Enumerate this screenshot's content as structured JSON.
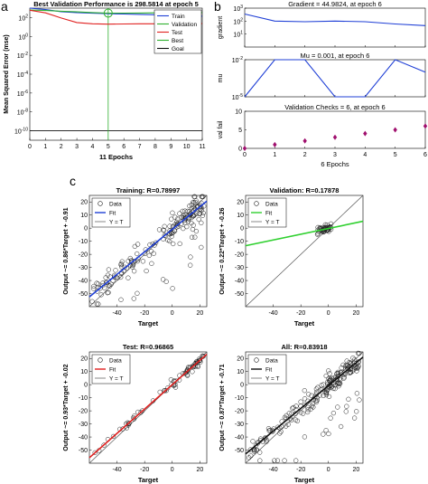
{
  "panel_labels": {
    "a": "a",
    "b": "b",
    "c": "c"
  },
  "chart_data": [
    {
      "id": "perf",
      "type": "line",
      "title": "Best Validation Performance is 298.5814 at epoch 5",
      "xlabel": "11 Epochs",
      "ylabel": "Mean Squared Error  (mse)",
      "yscale": "log",
      "xlim": [
        0,
        11
      ],
      "ylim_exp": [
        -11,
        3
      ],
      "x_ticks": [
        "0",
        "1",
        "2",
        "3",
        "4",
        "5",
        "6",
        "7",
        "8",
        "9",
        "10",
        "11"
      ],
      "y_ticks": [
        {
          "exp": 2,
          "label": "10",
          "sup": "2"
        },
        {
          "exp": 0,
          "label": "10",
          "sup": "0"
        },
        {
          "exp": -2,
          "label": "10",
          "sup": "-2"
        },
        {
          "exp": -4,
          "label": "10",
          "sup": "-4"
        },
        {
          "exp": -6,
          "label": "10",
          "sup": "-6"
        },
        {
          "exp": -8,
          "label": "10",
          "sup": "-8"
        },
        {
          "exp": -10,
          "label": "10",
          "sup": "-10"
        }
      ],
      "series": [
        {
          "name": "Train",
          "color": "#1f3fd6",
          "x": [
            0,
            1,
            2,
            3,
            4,
            5,
            6,
            7,
            8,
            9,
            10,
            11
          ],
          "y": [
            1000,
            700,
            420,
            330,
            290,
            260,
            240,
            220,
            200,
            180,
            160,
            140
          ]
        },
        {
          "name": "Validation",
          "color": "#2fb02f",
          "x": [
            0,
            1,
            2,
            3,
            4,
            5,
            6,
            7,
            8,
            9,
            10,
            11
          ],
          "y": [
            650,
            560,
            470,
            400,
            340,
            298.58,
            300,
            305,
            320,
            330,
            340,
            350
          ]
        },
        {
          "name": "Test",
          "color": "#e0201f",
          "x": [
            0,
            1,
            2,
            3,
            4,
            5,
            6,
            7,
            8,
            9,
            10,
            11
          ],
          "y": [
            600,
            320,
            90,
            30,
            22,
            20,
            21,
            22,
            22,
            23,
            23,
            23
          ]
        }
      ],
      "best": {
        "name": "Best",
        "epoch": 5,
        "value": 298.58
      },
      "goal": {
        "name": "Goal",
        "value": 1e-10
      },
      "legend_position": "top-right"
    },
    {
      "id": "gradient",
      "type": "line",
      "title": "Gradient = 44.9824, at epoch 6",
      "ylabel": "gradient",
      "yscale": "log",
      "xlim": [
        0,
        6
      ],
      "ylim_exp": [
        0,
        3
      ],
      "y_ticks": [
        {
          "exp": 3,
          "label": "10",
          "sup": "3"
        },
        {
          "exp": 2,
          "label": "10",
          "sup": "2"
        },
        {
          "exp": 1,
          "label": "10",
          "sup": "1"
        }
      ],
      "x": [
        0,
        1,
        2,
        3,
        4,
        5,
        6
      ],
      "y": [
        350,
        100,
        90,
        100,
        90,
        60,
        45
      ]
    },
    {
      "id": "mu",
      "type": "line",
      "title": "Mu = 0.001, at epoch 6",
      "ylabel": "mu",
      "yscale": "log",
      "xlim": [
        0,
        6
      ],
      "ylim_exp": [
        -5,
        -2
      ],
      "y_ticks": [
        {
          "exp": -2,
          "label": "10",
          "sup": "-2"
        },
        {
          "exp": -5,
          "label": "10",
          "sup": "-5"
        }
      ],
      "x": [
        0,
        1,
        2,
        3,
        4,
        5,
        6
      ],
      "y": [
        1e-05,
        0.01,
        0.01,
        1e-05,
        1e-05,
        0.01,
        0.001
      ]
    },
    {
      "id": "valfail",
      "type": "scatter",
      "title": "Validation Checks = 6, at epoch 6",
      "ylabel": "val fail",
      "xlabel": "6 Epochs",
      "xlim": [
        0,
        6
      ],
      "ylim": [
        0,
        10
      ],
      "x_ticks": [
        "0",
        "1",
        "2",
        "3",
        "4",
        "5",
        "6"
      ],
      "y_ticks": [
        "0",
        "5",
        "10"
      ],
      "x": [
        0,
        1,
        2,
        3,
        4,
        5,
        6
      ],
      "y": [
        0,
        1,
        2,
        3,
        4,
        5,
        6
      ]
    },
    {
      "id": "reg_train",
      "type": "scatter",
      "title": "Training: R=0.78997",
      "xlabel": "Target",
      "ylabel": "Output ~= 0.86*Target + -0.91",
      "xlim": [
        -60,
        25
      ],
      "ylim": [
        -60,
        25
      ],
      "x_ticks": [
        "-40",
        "-20",
        "0",
        "20"
      ],
      "y_ticks": [
        "-50",
        "-40",
        "-30",
        "-20",
        "-10",
        "0",
        "10",
        "20"
      ],
      "fit": {
        "slope": 0.86,
        "intercept": -0.91,
        "color": "#1f3fd6"
      },
      "legend": [
        "Data",
        "Fit",
        "Y = T"
      ]
    },
    {
      "id": "reg_val",
      "type": "scatter",
      "title": "Validation: R=0.17878",
      "xlabel": "Target",
      "ylabel": "Output ~= 0.22*Target + -0.26",
      "xlim": [
        -60,
        25
      ],
      "ylim": [
        -60,
        25
      ],
      "x_ticks": [
        "-40",
        "-20",
        "0",
        "20"
      ],
      "y_ticks": [
        "-50",
        "-40",
        "-30",
        "-20",
        "-10",
        "0",
        "10",
        "20"
      ],
      "fit": {
        "slope": 0.22,
        "intercept": -0.26,
        "color": "#2fd02f"
      },
      "legend": [
        "Data",
        "Fit",
        "Y = T"
      ]
    },
    {
      "id": "reg_test",
      "type": "scatter",
      "title": "Test: R=0.96865",
      "xlabel": "Target",
      "ylabel": "Output ~= 0.93*Target + -0.02",
      "xlim": [
        -60,
        25
      ],
      "ylim": [
        -60,
        25
      ],
      "x_ticks": [
        "-40",
        "-20",
        "0",
        "20"
      ],
      "y_ticks": [
        "-50",
        "-40",
        "-30",
        "-20",
        "-10",
        "0",
        "10",
        "20"
      ],
      "fit": {
        "slope": 0.93,
        "intercept": -0.02,
        "color": "#e0201f"
      },
      "legend": [
        "Data",
        "Fit",
        "Y = T"
      ]
    },
    {
      "id": "reg_all",
      "type": "scatter",
      "title": "All: R=0.83918",
      "xlabel": "Target",
      "ylabel": "Output ~= 0.87*Target + -0.71",
      "xlim": [
        -60,
        25
      ],
      "ylim": [
        -60,
        25
      ],
      "x_ticks": [
        "-40",
        "-20",
        "0",
        "20"
      ],
      "y_ticks": [
        "-50",
        "-40",
        "-30",
        "-20",
        "-10",
        "0",
        "10",
        "20"
      ],
      "fit": {
        "slope": 0.87,
        "intercept": -0.71,
        "color": "#111111"
      },
      "legend": [
        "Data",
        "Fit",
        "Y = T"
      ]
    }
  ]
}
